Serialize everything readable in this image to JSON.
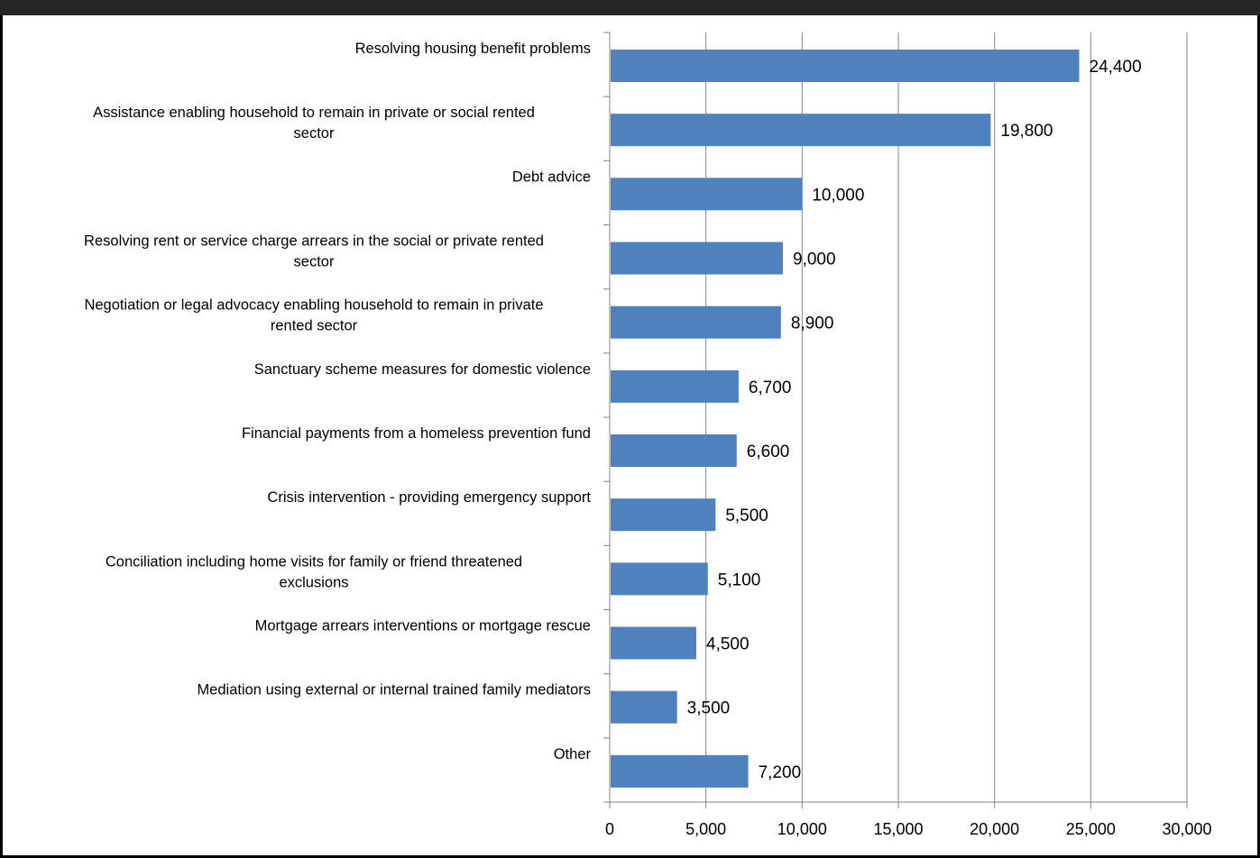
{
  "chart_data": {
    "type": "bar",
    "orientation": "horizontal",
    "categories": [
      [
        "Resolving housing benefit problems"
      ],
      [
        "Assistance enabling household to remain in private or social rented",
        "sector"
      ],
      [
        "Debt advice"
      ],
      [
        "Resolving rent or service charge arrears in the social or private rented",
        "sector"
      ],
      [
        "Negotiation or legal advocacy enabling household to remain in private",
        "rented sector"
      ],
      [
        "Sanctuary scheme measures for domestic violence"
      ],
      [
        "Financial payments from a homeless prevention fund"
      ],
      [
        "Crisis intervention - providing emergency support"
      ],
      [
        "Conciliation including home visits for family or friend threatened",
        "exclusions"
      ],
      [
        "Mortgage arrears interventions or mortgage rescue"
      ],
      [
        "Mediation using external or internal trained family mediators"
      ],
      [
        "Other"
      ]
    ],
    "values": [
      24400,
      19800,
      10000,
      9000,
      8900,
      6700,
      6600,
      5500,
      5100,
      4500,
      3500,
      7200
    ],
    "value_labels": [
      "24,400",
      "19,800",
      "10,000",
      "9,000",
      "8,900",
      "6,700",
      "6,600",
      "5,500",
      "5,100",
      "4,500",
      "3,500",
      "7,200"
    ],
    "xlim": [
      0,
      30000
    ],
    "ticks": [
      0,
      5000,
      10000,
      15000,
      20000,
      25000,
      30000
    ],
    "tick_labels": [
      "0",
      "5,000",
      "10,000",
      "15,000",
      "20,000",
      "25,000",
      "30,000"
    ],
    "grid": "vertical",
    "title": "",
    "xlabel": "",
    "ylabel": "",
    "colors": {
      "bar": "#4f81bd",
      "grid": "#868686",
      "axis": "#868686",
      "frame": "#000000",
      "header": "#262626"
    }
  }
}
